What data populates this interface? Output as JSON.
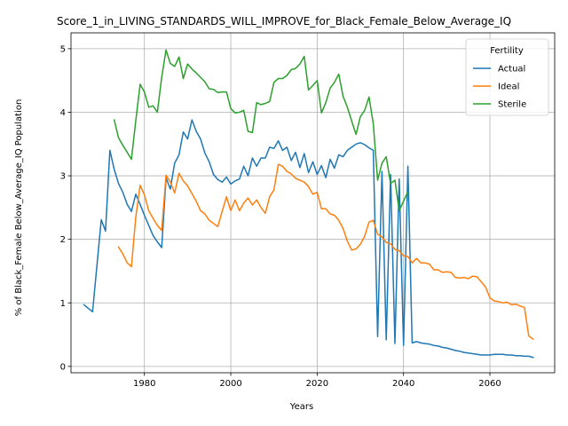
{
  "chart_data": {
    "type": "line",
    "title": "Score_1_in_LIVING_STANDARDS_WILL_IMPROVE_for_Black_Female_Below_Average_IQ",
    "xlabel": "Years",
    "ylabel": "% of Black_Female Below_Average_IQ Population",
    "xlim": [
      1963,
      2075
    ],
    "ylim": [
      -0.1,
      5.25
    ],
    "xticks": [
      1980,
      2000,
      2020,
      2040,
      2060
    ],
    "yticks": [
      0,
      1,
      2,
      3,
      4,
      5
    ],
    "grid": true,
    "legend": {
      "title": "Fertility",
      "position": "top-right"
    },
    "series": [
      {
        "name": "Actual",
        "color": "#1f77b4",
        "points": [
          [
            1966,
            0.97
          ],
          [
            1968,
            0.86
          ],
          [
            1970,
            2.31
          ],
          [
            1971,
            2.13
          ],
          [
            1972,
            3.4
          ],
          [
            1973,
            3.1
          ],
          [
            1974,
            2.88
          ],
          [
            1975,
            2.74
          ],
          [
            1976,
            2.55
          ],
          [
            1977,
            2.44
          ],
          [
            1978,
            2.71
          ],
          [
            1979,
            2.55
          ],
          [
            1980,
            2.38
          ],
          [
            1981,
            2.22
          ],
          [
            1982,
            2.06
          ],
          [
            1983,
            1.96
          ],
          [
            1984,
            1.87
          ],
          [
            1985,
            2.97
          ],
          [
            1986,
            2.79
          ],
          [
            1987,
            3.2
          ],
          [
            1988,
            3.33
          ],
          [
            1989,
            3.69
          ],
          [
            1990,
            3.58
          ],
          [
            1991,
            3.88
          ],
          [
            1992,
            3.7
          ],
          [
            1993,
            3.58
          ],
          [
            1994,
            3.36
          ],
          [
            1995,
            3.22
          ],
          [
            1996,
            3.02
          ],
          [
            1997,
            2.94
          ],
          [
            1998,
            2.9
          ],
          [
            1999,
            2.98
          ],
          [
            2000,
            2.87
          ],
          [
            2001,
            2.92
          ],
          [
            2002,
            2.95
          ],
          [
            2003,
            3.15
          ],
          [
            2004,
            3.0
          ],
          [
            2005,
            3.28
          ],
          [
            2006,
            3.15
          ],
          [
            2007,
            3.28
          ],
          [
            2008,
            3.28
          ],
          [
            2009,
            3.45
          ],
          [
            2010,
            3.43
          ],
          [
            2011,
            3.55
          ],
          [
            2012,
            3.4
          ],
          [
            2013,
            3.45
          ],
          [
            2014,
            3.24
          ],
          [
            2015,
            3.37
          ],
          [
            2016,
            3.13
          ],
          [
            2017,
            3.35
          ],
          [
            2018,
            3.05
          ],
          [
            2019,
            3.22
          ],
          [
            2020,
            3.02
          ],
          [
            2021,
            3.16
          ],
          [
            2022,
            2.97
          ],
          [
            2023,
            3.26
          ],
          [
            2024,
            3.12
          ],
          [
            2025,
            3.33
          ],
          [
            2026,
            3.3
          ],
          [
            2027,
            3.4
          ],
          [
            2028,
            3.45
          ],
          [
            2029,
            3.5
          ],
          [
            2030,
            3.52
          ],
          [
            2031,
            3.49
          ],
          [
            2032,
            3.44
          ],
          [
            2033,
            3.4
          ],
          [
            2034,
            0.47
          ],
          [
            2035,
            3.07
          ],
          [
            2036,
            0.42
          ],
          [
            2037,
            3.02
          ],
          [
            2038,
            0.36
          ],
          [
            2039,
            2.95
          ],
          [
            2040,
            0.33
          ],
          [
            2041,
            3.15
          ],
          [
            2042,
            0.37
          ],
          [
            2043,
            0.39
          ],
          [
            2044,
            0.37
          ],
          [
            2045,
            0.36
          ],
          [
            2046,
            0.35
          ],
          [
            2047,
            0.33
          ],
          [
            2048,
            0.32
          ],
          [
            2049,
            0.3
          ],
          [
            2050,
            0.29
          ],
          [
            2051,
            0.27
          ],
          [
            2052,
            0.25
          ],
          [
            2053,
            0.24
          ],
          [
            2054,
            0.22
          ],
          [
            2055,
            0.21
          ],
          [
            2056,
            0.2
          ],
          [
            2057,
            0.19
          ],
          [
            2058,
            0.18
          ],
          [
            2059,
            0.18
          ],
          [
            2060,
            0.18
          ],
          [
            2061,
            0.19
          ],
          [
            2062,
            0.19
          ],
          [
            2063,
            0.19
          ],
          [
            2064,
            0.18
          ],
          [
            2065,
            0.18
          ],
          [
            2066,
            0.17
          ],
          [
            2067,
            0.17
          ],
          [
            2068,
            0.16
          ],
          [
            2069,
            0.16
          ],
          [
            2070,
            0.14
          ]
        ]
      },
      {
        "name": "Ideal",
        "color": "#ff7f0e",
        "points": [
          [
            1974,
            1.88
          ],
          [
            1975,
            1.77
          ],
          [
            1976,
            1.63
          ],
          [
            1977,
            1.57
          ],
          [
            1978,
            2.35
          ],
          [
            1979,
            2.85
          ],
          [
            1980,
            2.7
          ],
          [
            1981,
            2.45
          ],
          [
            1982,
            2.33
          ],
          [
            1983,
            2.22
          ],
          [
            1984,
            2.14
          ],
          [
            1985,
            3.01
          ],
          [
            1986,
            2.9
          ],
          [
            1987,
            2.73
          ],
          [
            1988,
            3.04
          ],
          [
            1989,
            2.92
          ],
          [
            1990,
            2.84
          ],
          [
            1991,
            2.72
          ],
          [
            1992,
            2.6
          ],
          [
            1993,
            2.45
          ],
          [
            1994,
            2.4
          ],
          [
            1995,
            2.3
          ],
          [
            1996,
            2.25
          ],
          [
            1997,
            2.2
          ],
          [
            1998,
            2.44
          ],
          [
            1999,
            2.67
          ],
          [
            2000,
            2.45
          ],
          [
            2001,
            2.62
          ],
          [
            2002,
            2.45
          ],
          [
            2003,
            2.57
          ],
          [
            2004,
            2.65
          ],
          [
            2005,
            2.54
          ],
          [
            2006,
            2.62
          ],
          [
            2007,
            2.5
          ],
          [
            2008,
            2.41
          ],
          [
            2009,
            2.67
          ],
          [
            2010,
            2.78
          ],
          [
            2011,
            3.18
          ],
          [
            2012,
            3.15
          ],
          [
            2013,
            3.07
          ],
          [
            2014,
            3.03
          ],
          [
            2015,
            2.96
          ],
          [
            2016,
            2.93
          ],
          [
            2017,
            2.9
          ],
          [
            2018,
            2.83
          ],
          [
            2019,
            2.71
          ],
          [
            2020,
            2.74
          ],
          [
            2021,
            2.48
          ],
          [
            2022,
            2.48
          ],
          [
            2023,
            2.4
          ],
          [
            2024,
            2.38
          ],
          [
            2025,
            2.3
          ],
          [
            2026,
            2.17
          ],
          [
            2027,
            1.97
          ],
          [
            2028,
            1.83
          ],
          [
            2029,
            1.85
          ],
          [
            2030,
            1.92
          ],
          [
            2031,
            2.05
          ],
          [
            2032,
            2.27
          ],
          [
            2033,
            2.3
          ],
          [
            2034,
            2.08
          ],
          [
            2035,
            2.04
          ],
          [
            2036,
            1.95
          ],
          [
            2037,
            1.93
          ],
          [
            2038,
            1.84
          ],
          [
            2039,
            1.82
          ],
          [
            2040,
            1.74
          ],
          [
            2041,
            1.73
          ],
          [
            2042,
            1.63
          ],
          [
            2043,
            1.7
          ],
          [
            2044,
            1.63
          ],
          [
            2045,
            1.63
          ],
          [
            2046,
            1.61
          ],
          [
            2047,
            1.52
          ],
          [
            2048,
            1.52
          ],
          [
            2049,
            1.48
          ],
          [
            2050,
            1.49
          ],
          [
            2051,
            1.48
          ],
          [
            2052,
            1.4
          ],
          [
            2053,
            1.39
          ],
          [
            2054,
            1.4
          ],
          [
            2055,
            1.38
          ],
          [
            2056,
            1.42
          ],
          [
            2057,
            1.41
          ],
          [
            2058,
            1.33
          ],
          [
            2059,
            1.25
          ],
          [
            2060,
            1.08
          ],
          [
            2061,
            1.03
          ],
          [
            2062,
            1.02
          ],
          [
            2063,
            1.0
          ],
          [
            2064,
            1.01
          ],
          [
            2065,
            0.97
          ],
          [
            2066,
            0.98
          ],
          [
            2067,
            0.95
          ],
          [
            2068,
            0.93
          ],
          [
            2069,
            0.48
          ],
          [
            2070,
            0.43
          ]
        ]
      },
      {
        "name": "Sterile",
        "color": "#2ca02c",
        "points": [
          [
            1973,
            3.88
          ],
          [
            1974,
            3.6
          ],
          [
            1975,
            3.48
          ],
          [
            1976,
            3.37
          ],
          [
            1977,
            3.26
          ],
          [
            1978,
            3.87
          ],
          [
            1979,
            4.44
          ],
          [
            1980,
            4.32
          ],
          [
            1981,
            4.08
          ],
          [
            1982,
            4.1
          ],
          [
            1983,
            4.0
          ],
          [
            1984,
            4.55
          ],
          [
            1985,
            4.98
          ],
          [
            1986,
            4.77
          ],
          [
            1987,
            4.72
          ],
          [
            1988,
            4.87
          ],
          [
            1989,
            4.53
          ],
          [
            1990,
            4.76
          ],
          [
            1991,
            4.68
          ],
          [
            1992,
            4.62
          ],
          [
            1993,
            4.55
          ],
          [
            1994,
            4.48
          ],
          [
            1995,
            4.37
          ],
          [
            1996,
            4.36
          ],
          [
            1997,
            4.31
          ],
          [
            1998,
            4.32
          ],
          [
            1999,
            4.32
          ],
          [
            2000,
            4.06
          ],
          [
            2001,
            3.99
          ],
          [
            2002,
            4.0
          ],
          [
            2003,
            4.03
          ],
          [
            2004,
            3.7
          ],
          [
            2005,
            3.68
          ],
          [
            2006,
            4.15
          ],
          [
            2007,
            4.12
          ],
          [
            2008,
            4.14
          ],
          [
            2009,
            4.17
          ],
          [
            2010,
            4.47
          ],
          [
            2011,
            4.53
          ],
          [
            2012,
            4.53
          ],
          [
            2013,
            4.58
          ],
          [
            2014,
            4.67
          ],
          [
            2015,
            4.69
          ],
          [
            2016,
            4.76
          ],
          [
            2017,
            4.88
          ],
          [
            2018,
            4.35
          ],
          [
            2019,
            4.42
          ],
          [
            2020,
            4.5
          ],
          [
            2021,
            3.99
          ],
          [
            2022,
            4.15
          ],
          [
            2023,
            4.38
          ],
          [
            2024,
            4.47
          ],
          [
            2025,
            4.6
          ],
          [
            2026,
            4.25
          ],
          [
            2027,
            4.08
          ],
          [
            2028,
            3.86
          ],
          [
            2029,
            3.65
          ],
          [
            2030,
            3.93
          ],
          [
            2031,
            4.03
          ],
          [
            2032,
            4.24
          ],
          [
            2033,
            3.82
          ],
          [
            2034,
            2.93
          ],
          [
            2035,
            3.2
          ],
          [
            2036,
            3.3
          ],
          [
            2037,
            2.88
          ],
          [
            2038,
            2.93
          ],
          [
            2039,
            2.45
          ],
          [
            2040,
            2.6
          ],
          [
            2041,
            2.75
          ]
        ]
      }
    ]
  }
}
